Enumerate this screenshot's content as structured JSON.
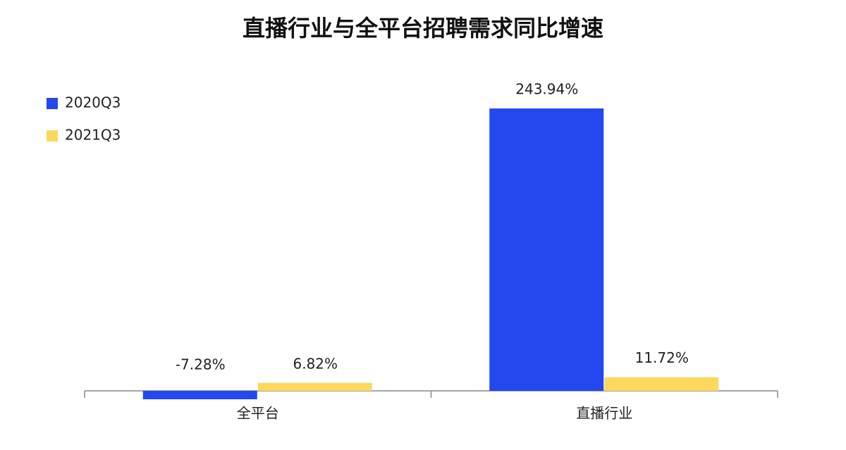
{
  "chart_data": {
    "type": "bar",
    "title": "直播行业与全平台招聘需求同比增速",
    "categories": [
      "全平台",
      "直播行业"
    ],
    "series": [
      {
        "name": "2020Q3",
        "color": "#2348f0",
        "values": [
          -7.28,
          243.94
        ],
        "value_labels": [
          "-7.28%",
          "243.94%"
        ]
      },
      {
        "name": "2021Q3",
        "color": "#fdd85c",
        "values": [
          6.82,
          11.72
        ],
        "value_labels": [
          "6.82%",
          "11.72%"
        ]
      }
    ],
    "legend": "top-left"
  }
}
